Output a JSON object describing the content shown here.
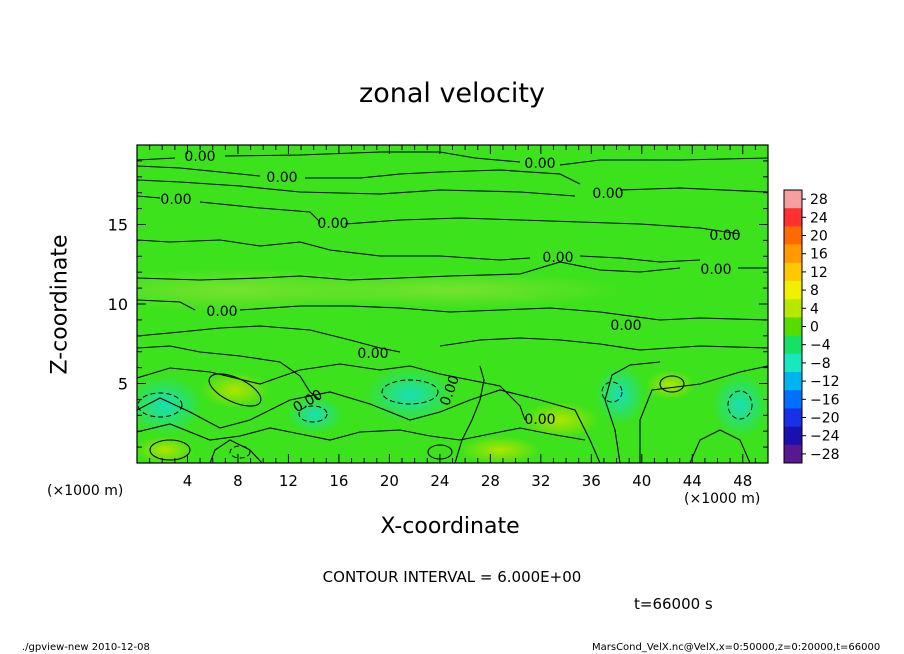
{
  "chart_data": {
    "type": "heatmap",
    "title": "zonal velocity",
    "xlabel": "X-coordinate",
    "ylabel": "Z-coordinate",
    "x_unit": "(×1000 m)",
    "xlim": [
      0,
      50
    ],
    "ylim": [
      0,
      20
    ],
    "x_ticks": [
      4,
      8,
      12,
      16,
      20,
      24,
      28,
      32,
      36,
      40,
      44,
      48
    ],
    "y_ticks": [
      5,
      10,
      15
    ],
    "contour_interval_text": "CONTOUR INTERVAL = 6.000E+00",
    "contour_label": "0.00",
    "colorbar": {
      "labels": [
        28,
        24,
        20,
        16,
        12,
        8,
        4,
        0,
        -4,
        -8,
        -12,
        -16,
        -20,
        -24,
        -28
      ],
      "colors": [
        "#f5a0a0",
        "#ff3030",
        "#ff6a00",
        "#ff9a00",
        "#ffc800",
        "#f0f000",
        "#b8e800",
        "#55dd00",
        "#16e066",
        "#18e8c0",
        "#00b4f0",
        "#0070ff",
        "#1830e8",
        "#1a10b0",
        "#581890"
      ]
    },
    "time_label": "t=66000 s",
    "footer_left": "./gpview-new  2010-12-08",
    "footer_right": "MarsCond_VelX.nc@VelX,x=0:50000,z=0:20000,t=66000"
  }
}
